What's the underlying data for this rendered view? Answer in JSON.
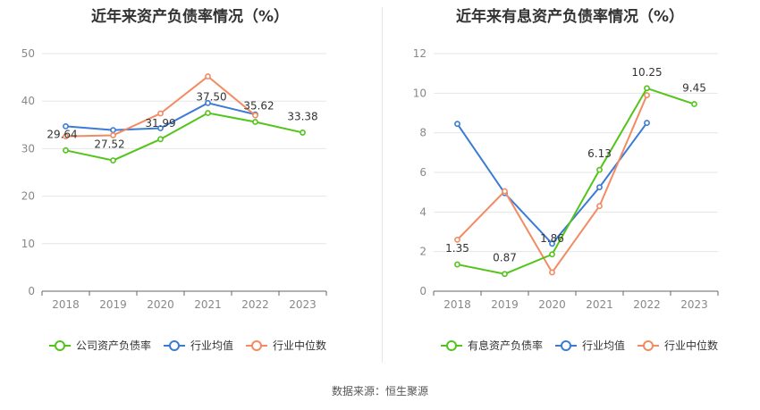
{
  "source_label": "数据来源：恒生聚源",
  "chart_data": [
    {
      "type": "line",
      "title": "近年来资产负债率情况（%）",
      "categories": [
        "2018",
        "2019",
        "2020",
        "2021",
        "2022",
        "2023"
      ],
      "ylim": [
        0,
        50
      ],
      "yticks": [
        0,
        10,
        20,
        30,
        40,
        50
      ],
      "grid": true,
      "legend_position": "bottom",
      "series": [
        {
          "name": "公司资产负债率",
          "color": "#52c41a",
          "values": [
            29.64,
            27.52,
            31.99,
            37.5,
            35.62,
            33.38
          ],
          "labels": [
            "29.64",
            "27.52",
            "31.99",
            "37.50",
            "35.62",
            "33.38"
          ]
        },
        {
          "name": "行业均值",
          "color": "#3a7bd5",
          "values": [
            34.7,
            33.9,
            34.3,
            39.6,
            37.2,
            null
          ]
        },
        {
          "name": "行业中位数",
          "color": "#f28b62",
          "values": [
            32.6,
            32.8,
            37.4,
            45.2,
            37.0,
            null
          ]
        }
      ]
    },
    {
      "type": "line",
      "title": "近年来有息资产负债率情况（%）",
      "categories": [
        "2018",
        "2019",
        "2020",
        "2021",
        "2022",
        "2023"
      ],
      "ylim": [
        0,
        12
      ],
      "yticks": [
        0,
        2,
        4,
        6,
        8,
        10,
        12
      ],
      "grid": true,
      "legend_position": "bottom",
      "series": [
        {
          "name": "有息资产负债率",
          "color": "#52c41a",
          "values": [
            1.35,
            0.87,
            1.86,
            6.13,
            10.25,
            9.45
          ],
          "labels": [
            "1.35",
            "0.87",
            "1.86",
            "6.13",
            "10.25",
            "9.45"
          ]
        },
        {
          "name": "行业均值",
          "color": "#3a7bd5",
          "values": [
            8.45,
            4.95,
            2.4,
            5.25,
            8.5,
            null
          ]
        },
        {
          "name": "行业中位数",
          "color": "#f28b62",
          "values": [
            2.6,
            5.05,
            0.95,
            4.3,
            9.9,
            null
          ]
        }
      ]
    }
  ]
}
